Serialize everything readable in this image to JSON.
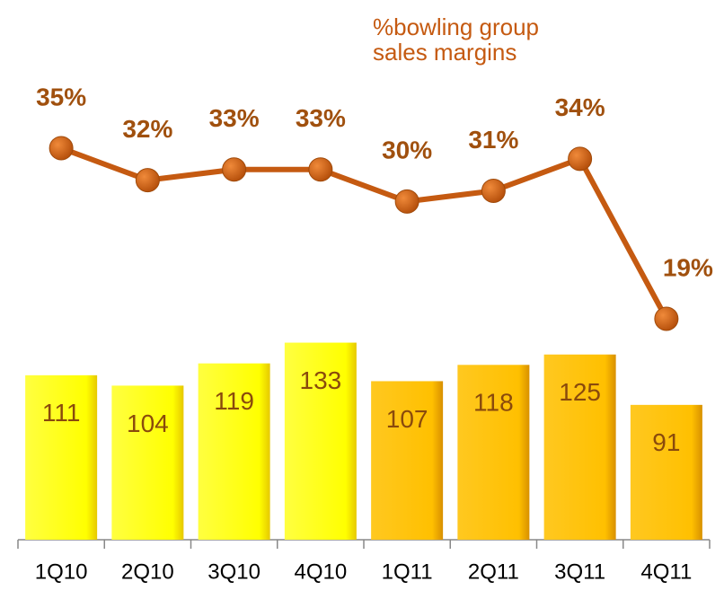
{
  "chart_data": {
    "type": "bar_line",
    "annotation": [
      "%bowling group",
      "sales margins"
    ],
    "categories": [
      "1Q10",
      "2Q10",
      "3Q10",
      "4Q10",
      "1Q11",
      "2Q11",
      "3Q11",
      "4Q11"
    ],
    "series": [
      {
        "type": "bar",
        "values": [
          111,
          104,
          119,
          133,
          107,
          118,
          125,
          91
        ],
        "colors": [
          "#ffff00",
          "#ffff00",
          "#ffff00",
          "#ffff00",
          "#ffc000",
          "#ffc000",
          "#ffc000",
          "#ffc000"
        ],
        "label_color": "#8a4a0c"
      },
      {
        "type": "line",
        "values": [
          35,
          32,
          33,
          33,
          30,
          31,
          34,
          19
        ],
        "value_labels": [
          "35%",
          "32%",
          "33%",
          "33%",
          "30%",
          "31%",
          "34%",
          "19%"
        ],
        "color": "#c55a11",
        "label_color": "#a0500e"
      }
    ]
  }
}
